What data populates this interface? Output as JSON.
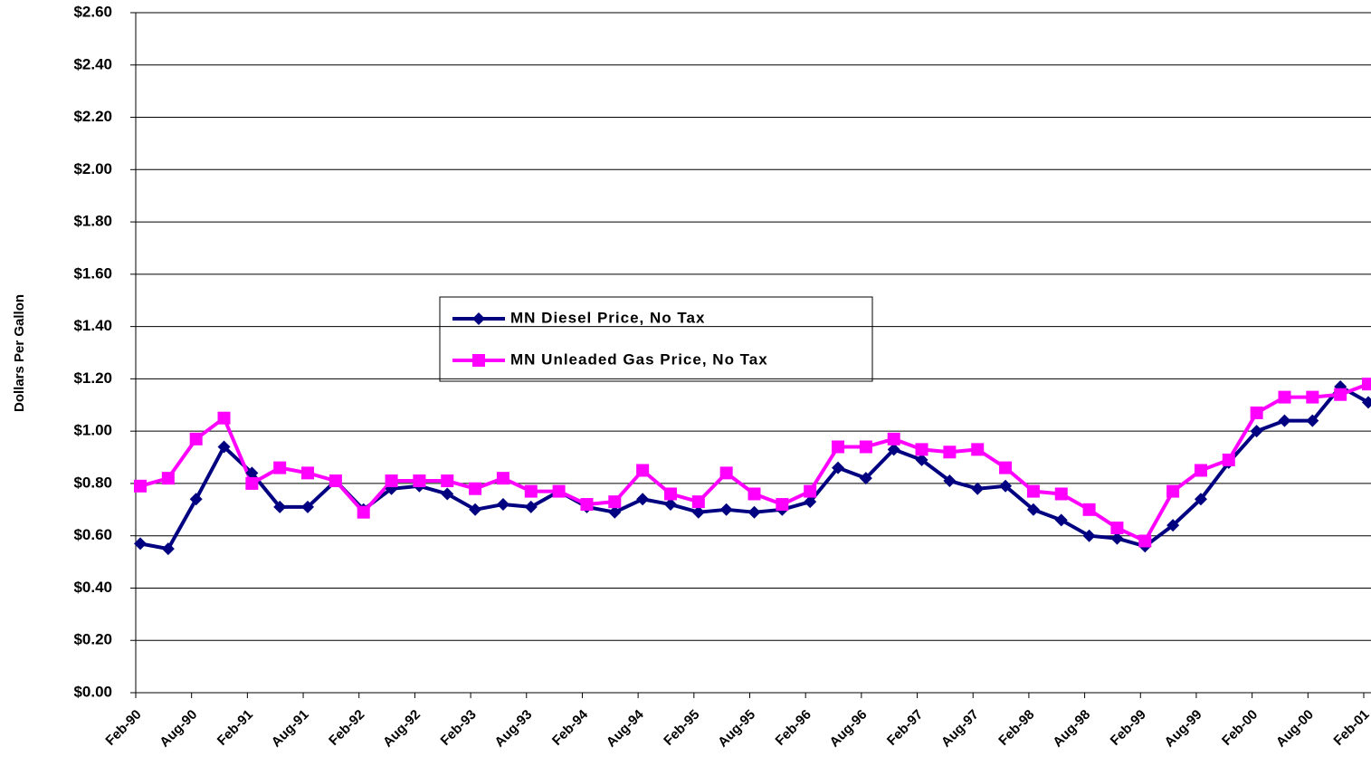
{
  "chart_data": {
    "type": "line",
    "y_axis_label": "Dollars Per Gallon",
    "categories": [
      "Feb-90",
      null,
      "Aug-90",
      null,
      "Feb-91",
      null,
      "Aug-91",
      null,
      "Feb-92",
      null,
      "Aug-92",
      null,
      "Feb-93",
      null,
      "Aug-93",
      null,
      "Feb-94",
      null,
      "Aug-94",
      null,
      "Feb-95",
      null,
      "Aug-95",
      null,
      "Feb-96",
      null,
      "Aug-96",
      null,
      "Feb-97",
      null,
      "Aug-97",
      null,
      "Feb-98",
      null,
      "Aug-98",
      null,
      "Feb-99",
      null,
      "Aug-99",
      null,
      "Feb-00",
      null,
      "Aug-00",
      null,
      "Feb-01"
    ],
    "series": [
      {
        "name": "MN Diesel Price, No Tax",
        "color": "#000080",
        "marker": "diamond",
        "values": [
          0.57,
          0.55,
          0.74,
          0.94,
          0.84,
          0.71,
          0.71,
          0.81,
          0.7,
          0.78,
          0.79,
          0.76,
          0.7,
          0.72,
          0.71,
          0.77,
          0.71,
          0.69,
          0.74,
          0.72,
          0.69,
          0.7,
          0.69,
          0.7,
          0.73,
          0.86,
          0.82,
          0.93,
          0.89,
          0.81,
          0.78,
          0.79,
          0.7,
          0.66,
          0.6,
          0.59,
          0.56,
          0.64,
          0.74,
          0.88,
          1.0,
          1.04,
          1.04,
          1.17,
          1.11
        ]
      },
      {
        "name": "MN Unleaded Gas Price, No Tax",
        "color": "#ff00ff",
        "marker": "square",
        "values": [
          0.79,
          0.82,
          0.97,
          1.05,
          0.8,
          0.86,
          0.84,
          0.81,
          0.69,
          0.81,
          0.81,
          0.81,
          0.78,
          0.82,
          0.77,
          0.77,
          0.72,
          0.73,
          0.85,
          0.76,
          0.73,
          0.84,
          0.76,
          0.72,
          0.77,
          0.94,
          0.94,
          0.97,
          0.93,
          0.92,
          0.93,
          0.86,
          0.77,
          0.76,
          0.7,
          0.63,
          0.58,
          0.77,
          0.85,
          0.89,
          1.07,
          1.13,
          1.13,
          1.14,
          1.18
        ]
      }
    ],
    "ylim": [
      0,
      2.6
    ],
    "yticks": [
      {
        "value": 0,
        "label": "$0.00"
      },
      {
        "value": 0.2,
        "label": "$0.20"
      },
      {
        "value": 0.4,
        "label": "$0.40"
      },
      {
        "value": 0.6,
        "label": "$0.60"
      },
      {
        "value": 0.8,
        "label": "$0.80"
      },
      {
        "value": 1.0,
        "label": "$1.00"
      },
      {
        "value": 1.2,
        "label": "$1.20"
      },
      {
        "value": 1.4,
        "label": "$1.40"
      },
      {
        "value": 1.6,
        "label": "$1.60"
      },
      {
        "value": 1.8,
        "label": "$1.80"
      },
      {
        "value": 2.0,
        "label": "$2.00"
      },
      {
        "value": 2.2,
        "label": "$2.20"
      },
      {
        "value": 2.4,
        "label": "$2.40"
      },
      {
        "value": 2.6,
        "label": "$2.60"
      }
    ],
    "grid": true,
    "legend": "center"
  }
}
